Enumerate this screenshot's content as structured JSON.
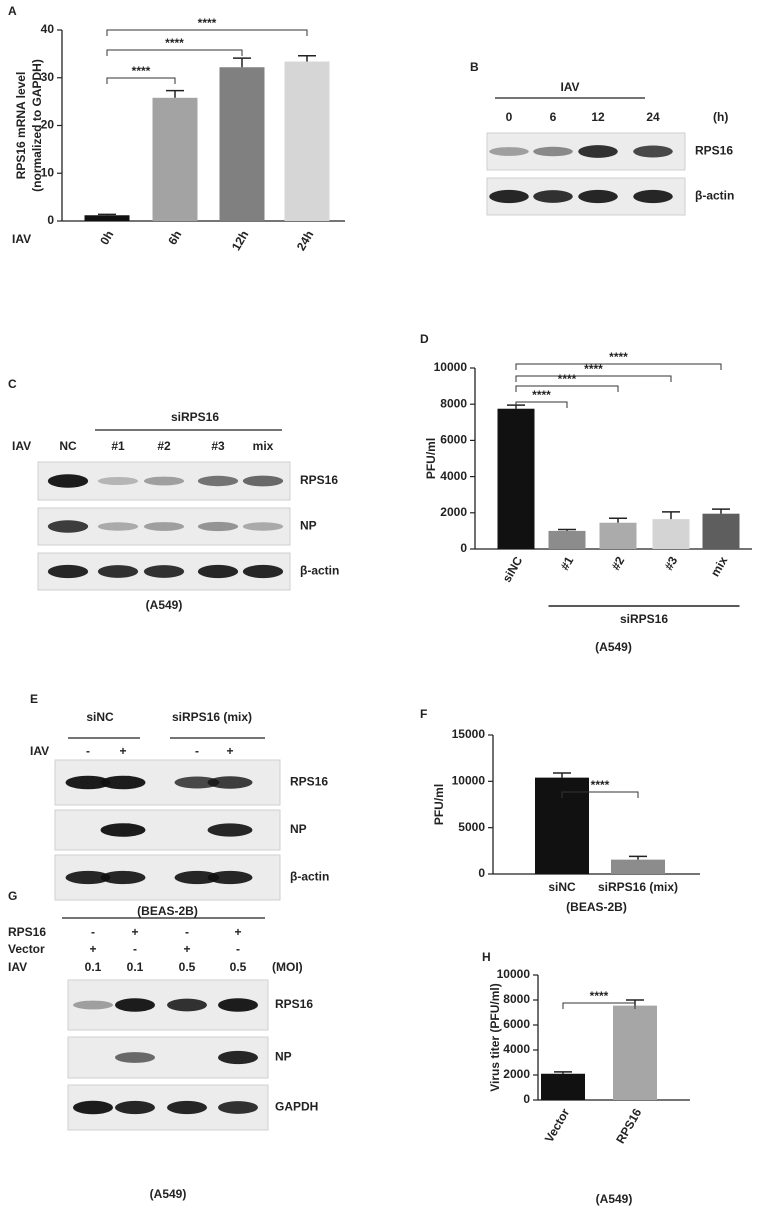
{
  "chart_data": [
    {
      "type": "bar",
      "panel": "A",
      "ylabel": [
        "RPS16 mRNA level",
        "(normalized to GAPDH)"
      ],
      "row_label": "IAV",
      "categories": [
        "0h",
        "6h",
        "12h",
        "24h"
      ],
      "values": [
        1.2,
        25.8,
        32.2,
        33.4
      ],
      "errors": [
        0.2,
        1.5,
        1.9,
        1.2
      ],
      "colors": [
        "#111111",
        "#a3a3a3",
        "#808080",
        "#d6d6d6"
      ],
      "ylim": [
        0,
        40
      ],
      "yticks": [
        0,
        10,
        20,
        30,
        40
      ],
      "significance": [
        {
          "from": 0,
          "to": 1,
          "label": "****"
        },
        {
          "from": 0,
          "to": 2,
          "label": "****"
        },
        {
          "from": 0,
          "to": 3,
          "label": "****"
        }
      ]
    },
    {
      "type": "bar",
      "panel": "D",
      "ylabel": [
        "PFU/ml"
      ],
      "categories": [
        "siNC",
        "#1",
        "#2",
        "#3",
        "mix"
      ],
      "values": [
        7750,
        1000,
        1450,
        1650,
        1950
      ],
      "errors": [
        200,
        80,
        250,
        400,
        250
      ],
      "colors": [
        "#111111",
        "#8c8c8c",
        "#ababab",
        "#d4d4d4",
        "#5e5e5e"
      ],
      "ylim": [
        0,
        10000
      ],
      "yticks": [
        0,
        2000,
        4000,
        6000,
        8000,
        10000
      ],
      "significance": [
        {
          "from": 0,
          "to": 1,
          "label": "****"
        },
        {
          "from": 0,
          "to": 2,
          "label": "****"
        },
        {
          "from": 0,
          "to": 3,
          "label": "****"
        },
        {
          "from": 0,
          "to": 4,
          "label": "****"
        }
      ],
      "group": {
        "label": "siRPS16",
        "from": 1,
        "to": 4
      },
      "footnote": "(A549)"
    },
    {
      "type": "bar",
      "panel": "F",
      "ylabel": [
        "PFU/ml"
      ],
      "categories": [
        "siNC",
        "siRPS16 (mix)"
      ],
      "values": [
        10400,
        1550
      ],
      "errors": [
        500,
        350
      ],
      "colors": [
        "#111111",
        "#8c8c8c"
      ],
      "ylim": [
        0,
        15000
      ],
      "yticks": [
        0,
        5000,
        10000,
        15000
      ],
      "significance": [
        {
          "from": 0,
          "to": 1,
          "label": "****"
        }
      ],
      "footnote": "(BEAS-2B)"
    },
    {
      "type": "bar",
      "panel": "H",
      "ylabel": [
        "Virus titer (PFU/ml)"
      ],
      "categories": [
        "Vector",
        "RPS16"
      ],
      "values": [
        2100,
        7550
      ],
      "errors": [
        150,
        450
      ],
      "colors": [
        "#111111",
        "#a6a6a6"
      ],
      "ylim": [
        0,
        10000
      ],
      "yticks": [
        0,
        2000,
        4000,
        6000,
        8000,
        10000
      ],
      "significance": [
        {
          "from": 0,
          "to": 1,
          "label": "****"
        }
      ],
      "footnote": "(A549)"
    }
  ],
  "blots": [
    {
      "panel": "B",
      "header": "IAV",
      "lanes": [
        "0",
        "6",
        "12",
        "24"
      ],
      "unit": "(h)",
      "rows": [
        "RPS16",
        "β-actin"
      ]
    },
    {
      "panel": "C",
      "groups": [
        "siRPS16"
      ],
      "row_label": "IAV",
      "lanes": [
        "NC",
        "#1",
        "#2",
        "#3",
        "mix"
      ],
      "rows": [
        "RPS16",
        "NP",
        "β-actin"
      ],
      "footnote": "(A549)"
    },
    {
      "panel": "E",
      "groups": [
        "siNC",
        "siRPS16 (mix)"
      ],
      "row_label": "IAV",
      "lanes": [
        "-",
        "+",
        "-",
        "+"
      ],
      "rows": [
        "RPS16",
        "NP",
        "β-actin"
      ],
      "footnote": "(BEAS-2B)"
    },
    {
      "panel": "G",
      "treatments": [
        {
          "label": "RPS16",
          "lanes": [
            "-",
            "+",
            "-",
            "+"
          ]
        },
        {
          "label": "Vector",
          "lanes": [
            "+",
            "-",
            "+",
            "-"
          ]
        },
        {
          "label": "IAV",
          "lanes": [
            "0.1",
            "0.1",
            "0.5",
            "0.5"
          ]
        }
      ],
      "unit": "(MOI)",
      "rows": [
        "RPS16",
        "NP",
        "GAPDH"
      ],
      "footnote": "(A549)"
    }
  ]
}
